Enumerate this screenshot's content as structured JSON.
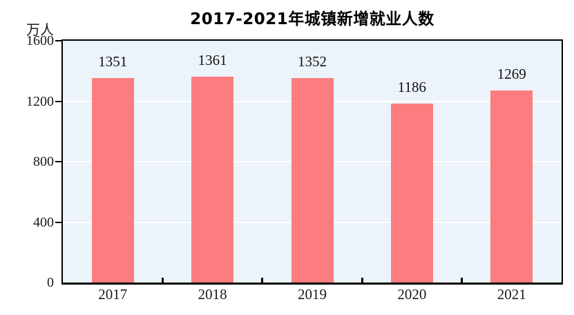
{
  "chart_data": {
    "type": "bar",
    "title": "2017-2021年城镇新增就业人数",
    "unit_label": "万人",
    "categories": [
      "2017",
      "2018",
      "2019",
      "2020",
      "2021"
    ],
    "values": [
      1351,
      1361,
      1352,
      1186,
      1269
    ],
    "xlabel": "",
    "ylabel": "万人",
    "ylim": [
      0,
      1600
    ],
    "yticks": [
      0,
      400,
      800,
      1200,
      1600
    ],
    "grid": true,
    "legend": "none",
    "colors": {
      "bar": "#FC7D7F",
      "plot_background": "#ECF3FA",
      "gridline": "#FFFFFF",
      "axis": "#000000",
      "text": "#1a1a1a",
      "page_background": "#FFFFFF"
    }
  }
}
